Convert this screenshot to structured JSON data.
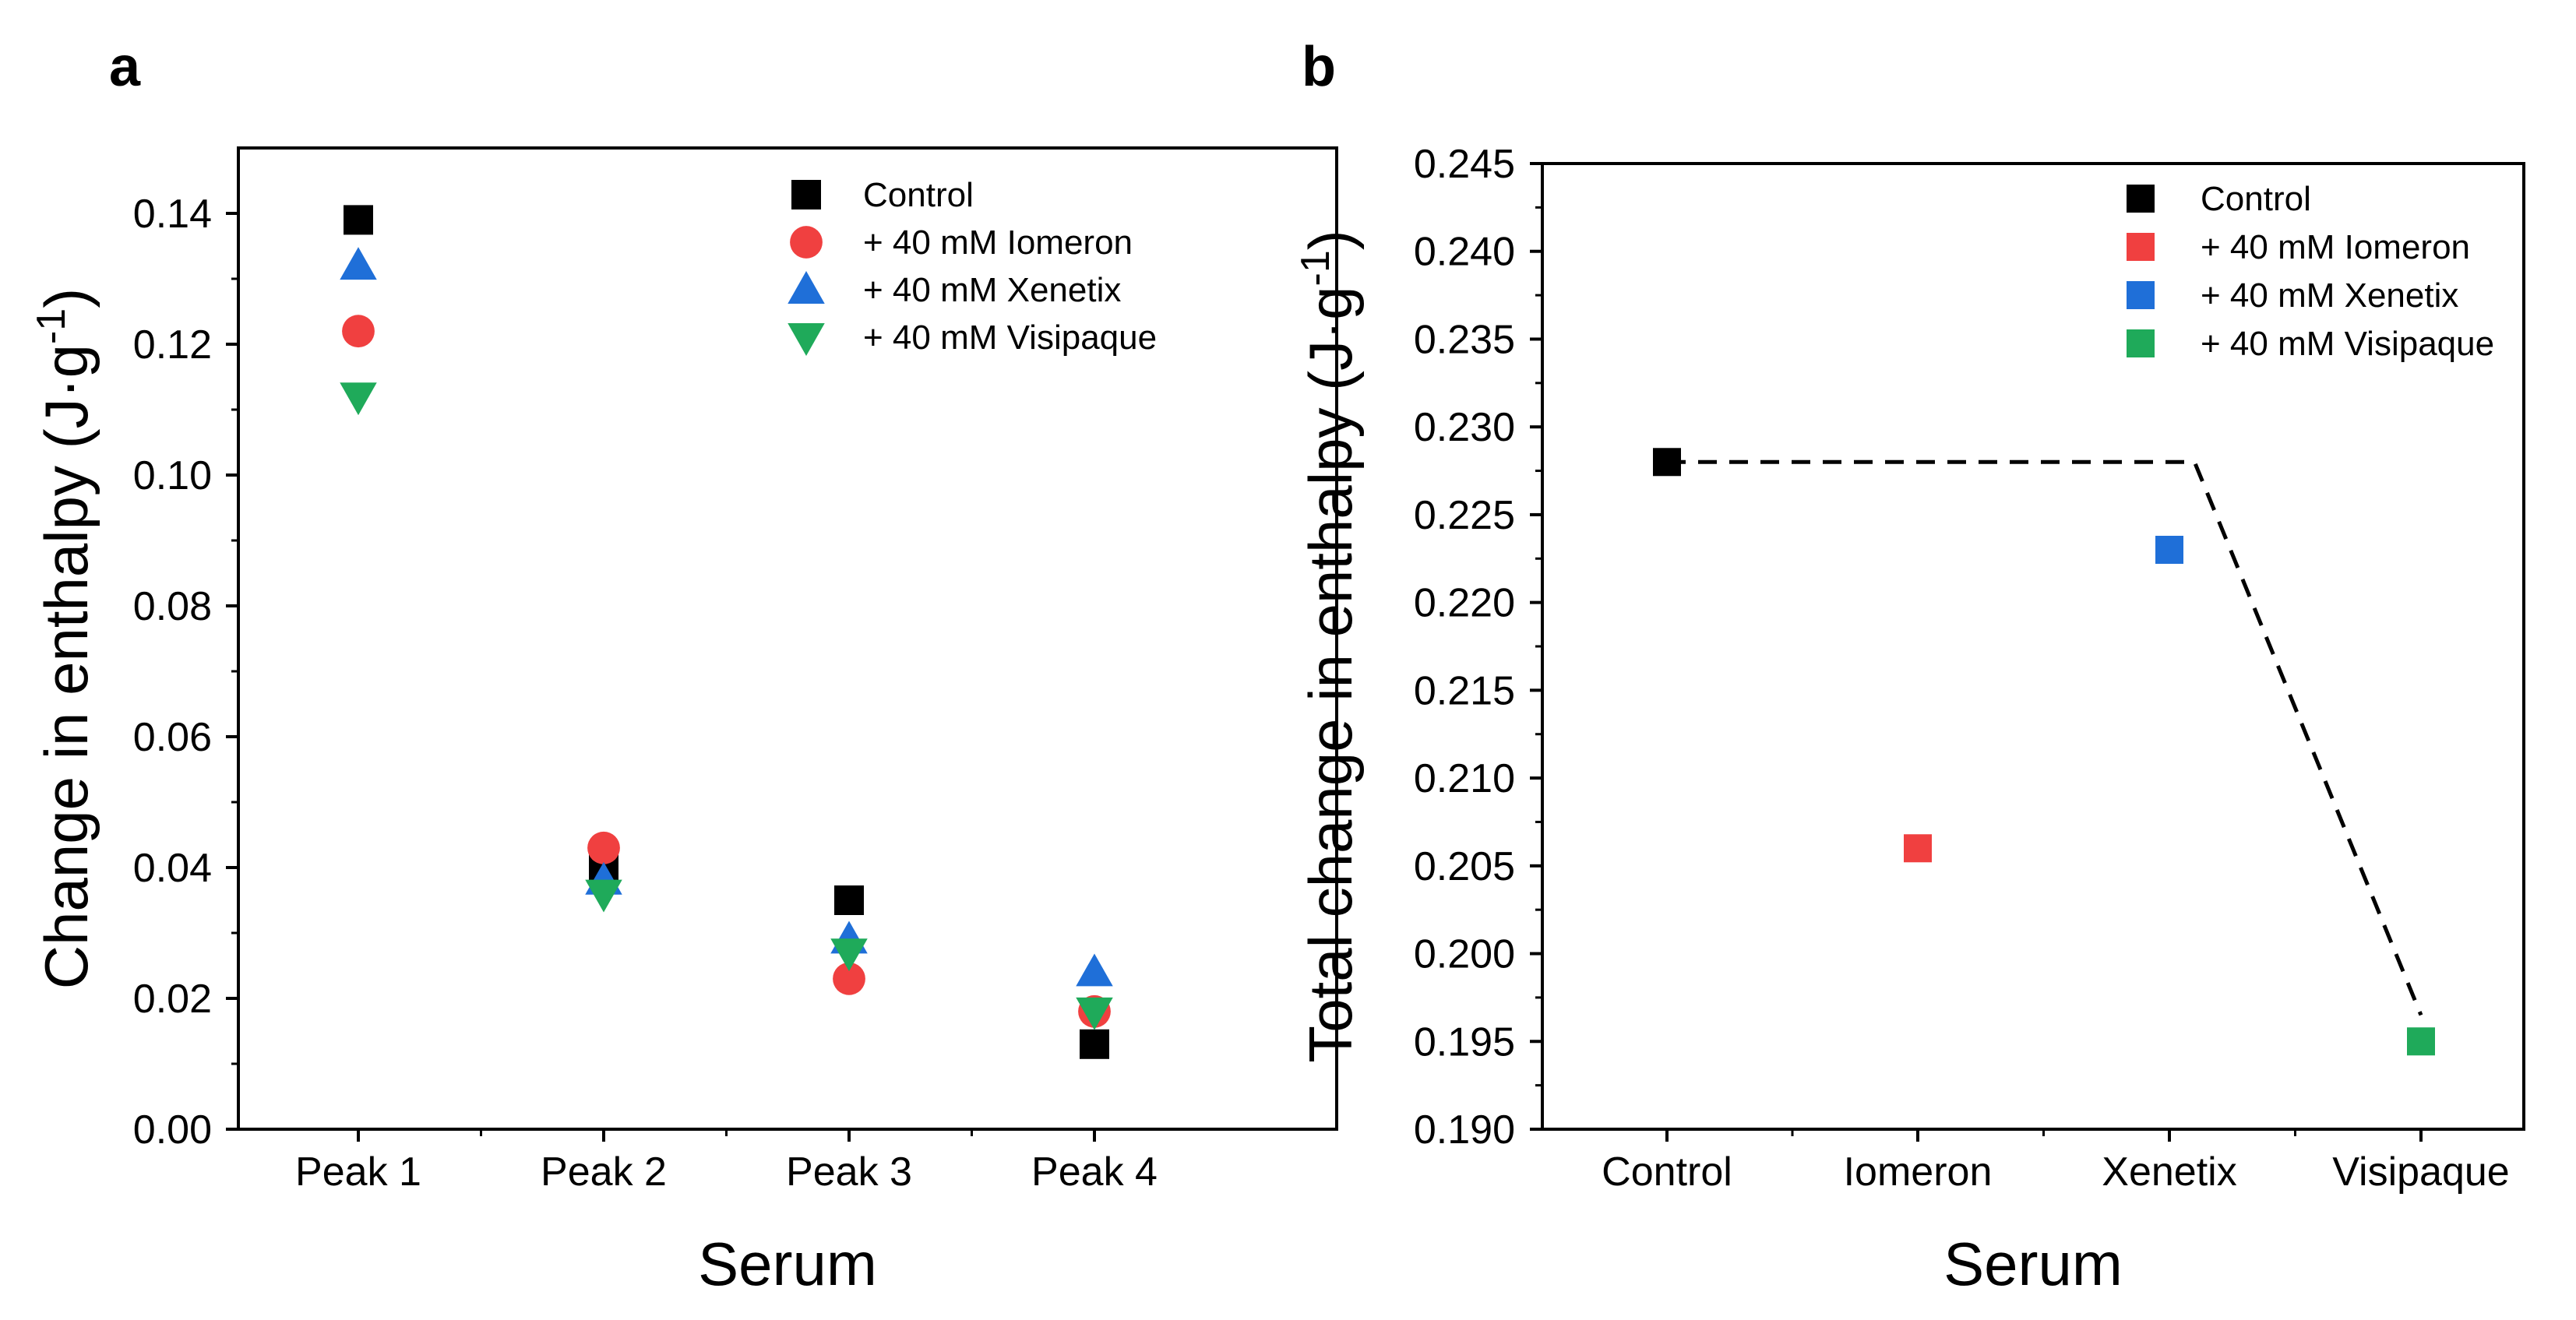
{
  "chart_data": [
    {
      "panel_label": "a",
      "type": "scatter",
      "xlabel": "Serum",
      "ylabel_main": "Change in enthalpy (J·g",
      "ylabel_sup": "-1",
      "ylabel_close": ")",
      "categories": [
        "Peak 1",
        "Peak 2",
        "Peak 3",
        "Peak 4"
      ],
      "ylim": [
        0,
        0.15
      ],
      "yticks": [
        0.0,
        0.02,
        0.04,
        0.06,
        0.08,
        0.1,
        0.12,
        0.14
      ],
      "ytick_labels": [
        "0.00",
        "0.02",
        "0.04",
        "0.06",
        "0.08",
        "0.10",
        "0.12",
        "0.14"
      ],
      "legend_position": "top-right",
      "series": [
        {
          "name": "Control",
          "marker": "square",
          "color": "#000000",
          "values": [
            0.139,
            0.04,
            0.035,
            0.013
          ]
        },
        {
          "name": "+ 40 mM Iomeron",
          "marker": "circle",
          "color": "#f04040",
          "values": [
            0.122,
            0.043,
            0.023,
            0.018
          ]
        },
        {
          "name": "+ 40 mM Xenetix",
          "marker": "triangle-up",
          "color": "#1f6fd8",
          "values": [
            0.132,
            0.038,
            0.029,
            0.024
          ]
        },
        {
          "name": "+ 40 mM Visipaque",
          "marker": "triangle-down",
          "color": "#1faa5a",
          "values": [
            0.112,
            0.036,
            0.027,
            0.018
          ]
        }
      ]
    },
    {
      "panel_label": "b",
      "type": "scatter",
      "xlabel": "Serum",
      "ylabel_main": "Total change in enthalpy (J·g",
      "ylabel_sup": "-1",
      "ylabel_close": ")",
      "categories": [
        "Control",
        "Iomeron",
        "Xenetix",
        "Visipaque"
      ],
      "ylim": [
        0.19,
        0.245
      ],
      "yticks": [
        0.19,
        0.195,
        0.2,
        0.205,
        0.21,
        0.215,
        0.22,
        0.225,
        0.23,
        0.235,
        0.24,
        0.245
      ],
      "ytick_labels": [
        "0.190",
        "0.195",
        "0.200",
        "0.205",
        "0.210",
        "0.215",
        "0.220",
        "0.225",
        "0.230",
        "0.235",
        "0.240",
        "0.245"
      ],
      "legend_position": "top-right",
      "series": [
        {
          "name": "Control",
          "marker": "square",
          "color": "#000000",
          "values": [
            0.228,
            null,
            null,
            null
          ]
        },
        {
          "name": "+ 40 mM Iomeron",
          "marker": "square",
          "color": "#f04040",
          "values": [
            null,
            0.206,
            null,
            null
          ]
        },
        {
          "name": "+ 40 mM Xenetix",
          "marker": "square",
          "color": "#1f6fd8",
          "values": [
            null,
            null,
            0.223,
            null
          ]
        },
        {
          "name": "+ 40 mM Visipaque",
          "marker": "square",
          "color": "#1faa5a",
          "values": [
            null,
            null,
            null,
            0.195
          ]
        }
      ],
      "trend_line": {
        "style": "dashed",
        "color": "#000000",
        "x": [
          0,
          2.1,
          3.0
        ],
        "y": [
          0.228,
          0.228,
          0.1965
        ]
      }
    }
  ]
}
